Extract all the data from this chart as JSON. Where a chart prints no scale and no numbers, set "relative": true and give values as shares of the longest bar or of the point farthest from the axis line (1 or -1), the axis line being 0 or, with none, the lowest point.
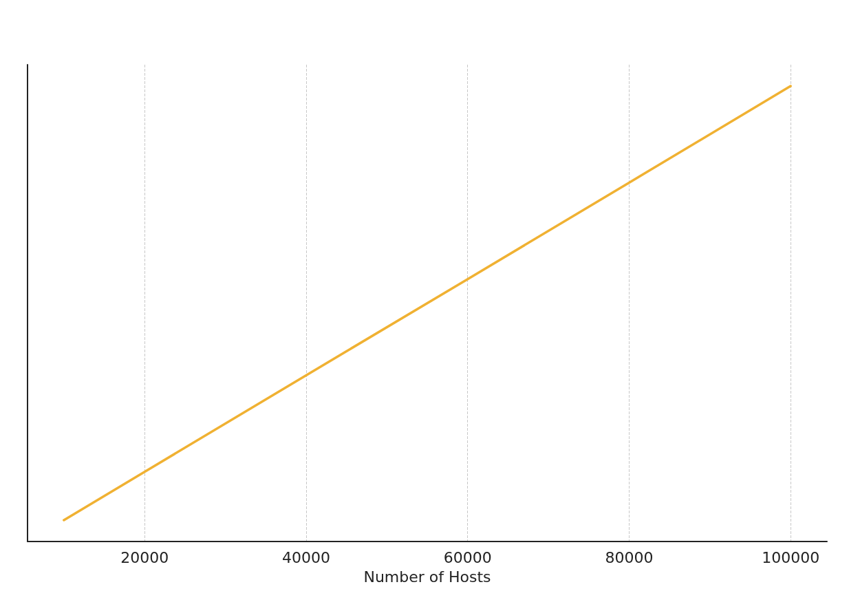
{
  "chart_data": {
    "type": "line",
    "xlabel": "Number of Hosts",
    "relative": true,
    "x": [
      10000,
      20000,
      40000,
      60000,
      80000,
      100000
    ],
    "series": [
      {
        "color": "#f0b132",
        "values": [
          0.047,
          0.153,
          0.365,
          0.576,
          0.788,
          1
        ]
      }
    ],
    "xlim": [
      5500,
      104500
    ],
    "xticks": [
      20000,
      40000,
      60000,
      80000,
      100000
    ],
    "grid": "x",
    "line_style": "solid",
    "marker": "none"
  }
}
